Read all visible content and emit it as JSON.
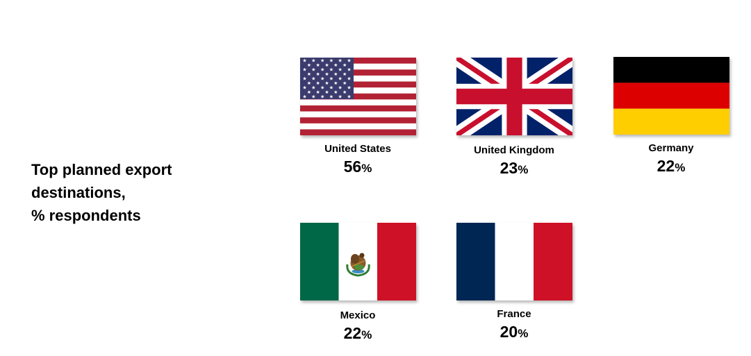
{
  "title_lines": [
    "Top planned export",
    "destinations,",
    "% respondents"
  ],
  "chart_data": {
    "type": "table",
    "title": "Top planned export destinations, % respondents",
    "unit": "%",
    "categories": [
      "United States",
      "United Kingdom",
      "Germany",
      "Mexico",
      "France"
    ],
    "values": [
      56,
      23,
      22,
      22,
      20
    ]
  },
  "countries": [
    {
      "name": "United States",
      "value": "56",
      "unit": "%",
      "flag": "us-flag-icon"
    },
    {
      "name": "United Kingdom",
      "value": "23",
      "unit": "%",
      "flag": "uk-flag-icon"
    },
    {
      "name": "Germany",
      "value": "22",
      "unit": "%",
      "flag": "germany-flag-icon"
    },
    {
      "name": "Mexico",
      "value": "22",
      "unit": "%",
      "flag": "mexico-flag-icon"
    },
    {
      "name": "France",
      "value": "20",
      "unit": "%",
      "flag": "france-flag-icon"
    }
  ],
  "colors": {
    "us_red": "#B22234",
    "us_blue": "#3C3B6E",
    "uk_blue": "#012169",
    "uk_red": "#C8102E",
    "de_black": "#000000",
    "de_red": "#DD0000",
    "de_gold": "#FFCE00",
    "mx_green": "#006847",
    "mx_red": "#CE1126",
    "fr_blue": "#002654",
    "fr_red": "#CE1126"
  }
}
